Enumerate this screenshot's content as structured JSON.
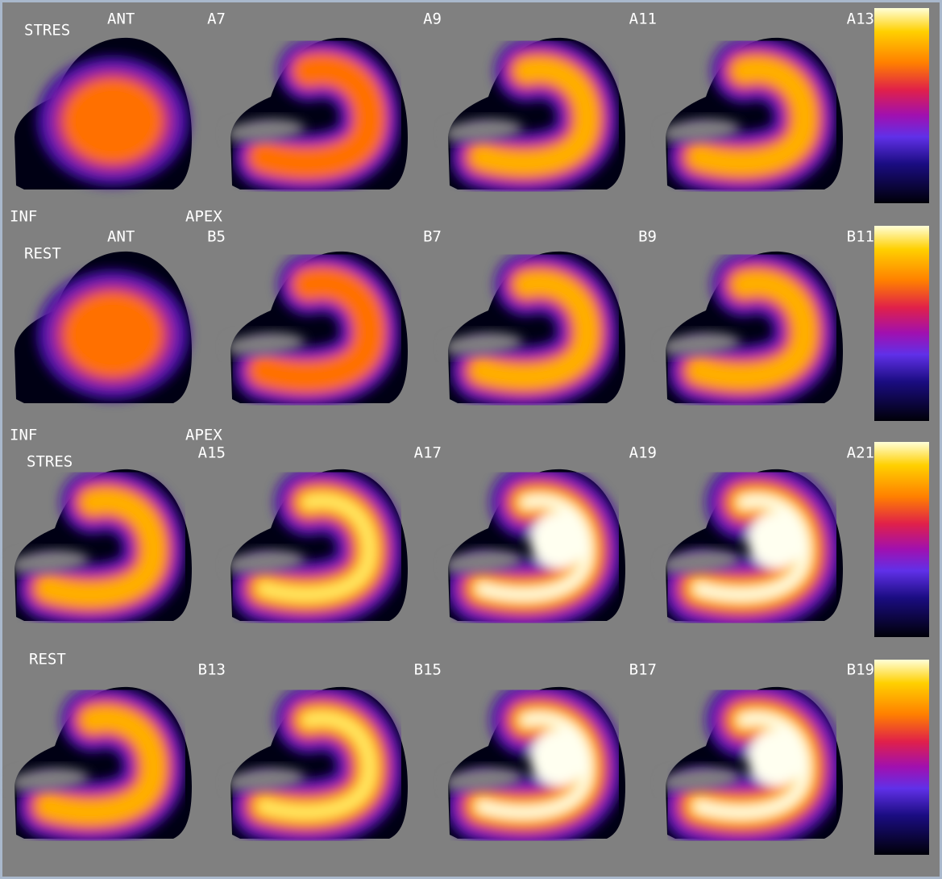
{
  "panels": [
    {
      "view": "STRES",
      "orientation": "ANT",
      "slices": [
        "A7",
        "A9",
        "A11",
        "A13"
      ],
      "bottom_left": "INF",
      "bottom_right": "APEX"
    },
    {
      "view": "REST",
      "orientation": "ANT",
      "slices": [
        "B5",
        "B7",
        "B9",
        "B11"
      ],
      "bottom_left": "INF",
      "bottom_right": "APEX"
    },
    {
      "view": "STRES",
      "slices": [
        "A15",
        "A17",
        "A19",
        "A21"
      ]
    },
    {
      "view": "REST",
      "slices": [
        "B13",
        "B15",
        "B17",
        "B19"
      ]
    }
  ]
}
